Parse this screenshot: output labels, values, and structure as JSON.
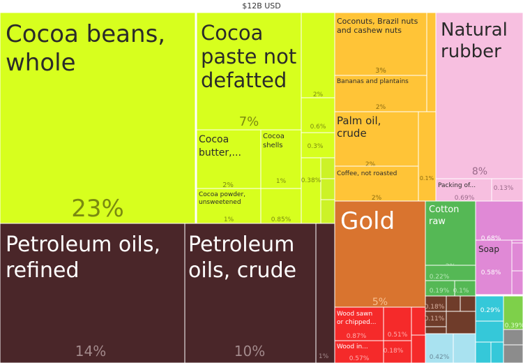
{
  "chart_data": {
    "type": "treemap",
    "title": "$12B USD",
    "colors": {
      "agri": "#d7ff1e",
      "agri_mid": "#ccf227",
      "food": "#ffc437",
      "pink": "#f7bfe0",
      "gold": "#d9742f",
      "dark": "#4a2629",
      "green": "#55b855",
      "magenta": "#e089d6",
      "red": "#f52a2a",
      "brown": "#6f3c2a",
      "cyan": "#35c8d9",
      "lightblue": "#a9e2f0",
      "limegreen": "#7ed04a",
      "gray": "#8c8c8c"
    },
    "tiles": [
      {
        "name": "Cocoa beans, whole",
        "pct": "23%",
        "share": 23
      },
      {
        "name": "Cocoa paste not defatted",
        "pct": "7%",
        "share": 7
      },
      {
        "name": "Cocoa butter,...",
        "pct": "2%",
        "share": 2
      },
      {
        "name": "Cocoa shells",
        "pct": "1%",
        "share": 1
      },
      {
        "name": "Cocoa powder, unsweetened",
        "pct": "1%",
        "share": 1
      },
      {
        "name": "",
        "pct": "0.85%",
        "share": 0.85
      },
      {
        "name": "",
        "pct": "2%",
        "share": 2
      },
      {
        "name": "",
        "pct": "0.6%",
        "share": 0.6
      },
      {
        "name": "",
        "pct": "0.3%",
        "share": 0.3
      },
      {
        "name": "",
        "pct": "0.38%",
        "share": 0.38
      },
      {
        "name": "Petroleum oils, refined",
        "pct": "14%",
        "share": 14
      },
      {
        "name": "Petroleum oils, crude",
        "pct": "10%",
        "share": 10
      },
      {
        "name": "",
        "pct": "1%",
        "share": 1
      },
      {
        "name": "Coconuts, Brazil nuts and cashew nuts",
        "pct": "3%",
        "share": 3
      },
      {
        "name": "Bananas and plantains",
        "pct": "2%",
        "share": 2
      },
      {
        "name": "Palm oil, crude",
        "pct": "2%",
        "share": 2
      },
      {
        "name": "Coffee, not roasted",
        "pct": "2%",
        "share": 2
      },
      {
        "name": "",
        "pct": "0.1%",
        "share": 0.1
      },
      {
        "name": "Natural rubber",
        "pct": "8%",
        "share": 8
      },
      {
        "name": "Packing of...",
        "pct": "0.69%",
        "share": 0.69
      },
      {
        "name": "",
        "pct": "0.13%",
        "share": 0.13
      },
      {
        "name": "Gold",
        "pct": "5%",
        "share": 5
      },
      {
        "name": "Cotton raw",
        "pct": "2%",
        "share": 2
      },
      {
        "name": "",
        "pct": "0.22%",
        "share": 0.22
      },
      {
        "name": "",
        "pct": "0.19%",
        "share": 0.19
      },
      {
        "name": "",
        "pct": "0.1%",
        "share": 0.1
      },
      {
        "name": "",
        "pct": "0.68%",
        "share": 0.68
      },
      {
        "name": "Soap",
        "pct": "0.58%",
        "share": 0.58
      },
      {
        "name": "Wood sawn or chipped...",
        "pct": "0.87%",
        "share": 0.87
      },
      {
        "name": "",
        "pct": "0.51%",
        "share": 0.51
      },
      {
        "name": "Wood in...",
        "pct": "0.57%",
        "share": 0.57
      },
      {
        "name": "",
        "pct": "0.18%",
        "share": 0.18
      },
      {
        "name": "",
        "pct": "0.18%",
        "share": 0.18
      },
      {
        "name": "",
        "pct": "0.11%",
        "share": 0.11
      },
      {
        "name": "",
        "pct": "0.29%",
        "share": 0.29
      },
      {
        "name": "",
        "pct": "0.39%",
        "share": 0.39
      },
      {
        "name": "",
        "pct": "0.42%",
        "share": 0.42
      }
    ]
  }
}
